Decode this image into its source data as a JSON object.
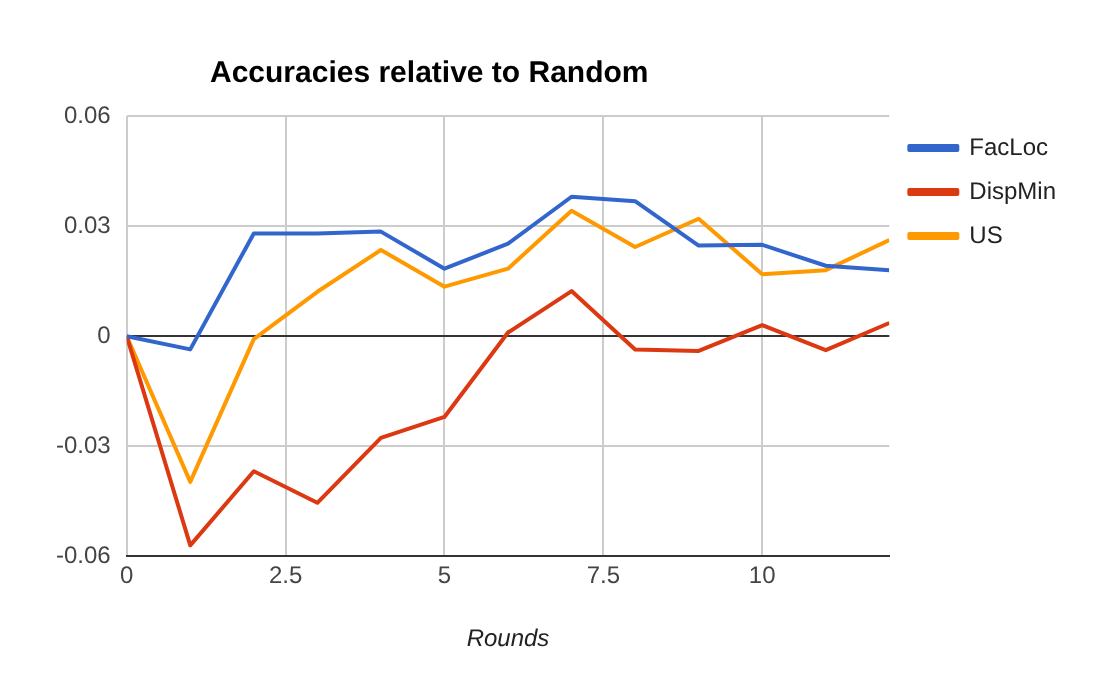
{
  "chart_data": {
    "type": "line",
    "title": "Accuracies relative to Random",
    "xlabel": "Rounds",
    "x": [
      0,
      1,
      2,
      3,
      4,
      5,
      6,
      7,
      8,
      9,
      10,
      11,
      12
    ],
    "series": [
      {
        "name": "FacLoc",
        "color": "#3366cc",
        "values": [
          0,
          -0.0036,
          0.028,
          0.028,
          0.0285,
          0.0184,
          0.0252,
          0.038,
          0.0368,
          0.0247,
          0.0249,
          0.0192,
          0.018
        ]
      },
      {
        "name": "DispMin",
        "color": "#dc3912",
        "values": [
          0,
          -0.057,
          -0.0368,
          -0.0454,
          -0.0277,
          -0.022,
          0.001,
          0.0123,
          -0.0036,
          -0.004,
          0.003,
          -0.0038,
          0.0036
        ]
      },
      {
        "name": "US",
        "color": "#ff9900",
        "values": [
          0,
          -0.0397,
          -0.0008,
          0.0121,
          0.0235,
          0.0135,
          0.0184,
          0.0342,
          0.0243,
          0.032,
          0.0169,
          0.018,
          0.0262
        ]
      }
    ],
    "xlim": [
      0,
      12
    ],
    "xticks": [
      0,
      2.5,
      5,
      7.5,
      10
    ],
    "ylim": [
      -0.06,
      0.06
    ],
    "yticks": [
      -0.06,
      -0.03,
      0,
      0.03,
      0.06
    ],
    "grid": true,
    "legend": "top right",
    "marker": "none",
    "line_style": "solid"
  }
}
